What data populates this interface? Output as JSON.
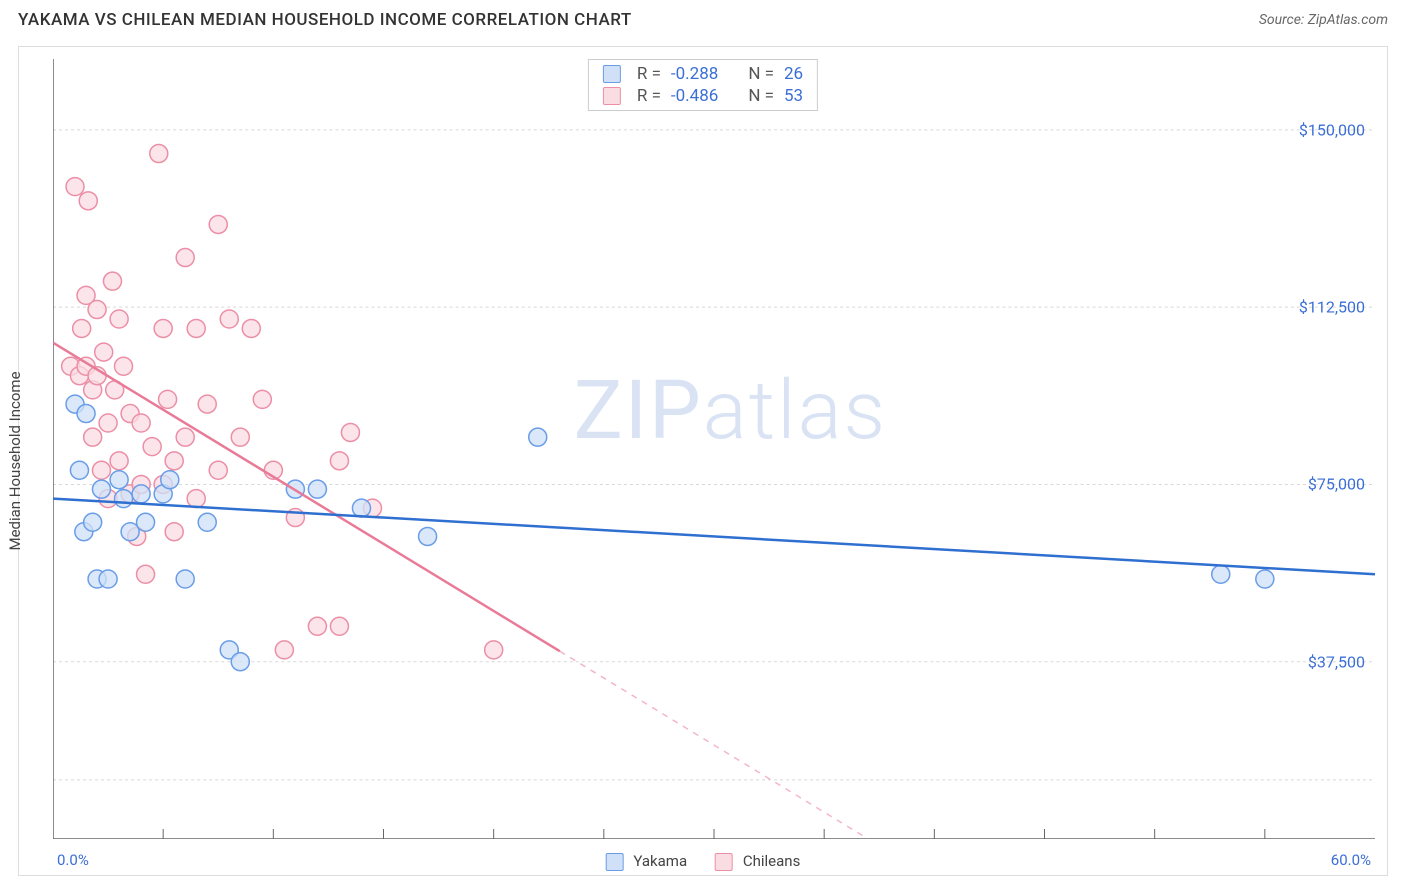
{
  "header": {
    "title": "YAKAMA VS CHILEAN MEDIAN HOUSEHOLD INCOME CORRELATION CHART",
    "source": "Source: ZipAtlas.com"
  },
  "watermark": {
    "left": "ZIP",
    "right": "atlas"
  },
  "chart": {
    "type": "scatter",
    "y_axis_label": "Median Household Income",
    "xlim": [
      0,
      60
    ],
    "ylim": [
      0,
      165000
    ],
    "x_min_label": "0.0%",
    "x_max_label": "60.0%",
    "y_ticks": [
      37500,
      75000,
      112500,
      150000
    ],
    "y_tick_labels": [
      "$37,500",
      "$75,000",
      "$112,500",
      "$150,000"
    ],
    "x_tick_positions": [
      5,
      10,
      15,
      20,
      25,
      30,
      35,
      40,
      45,
      50,
      55
    ],
    "grid_color": "#d8d8d8",
    "grid_dash": "3,3",
    "axis_color": "#666666",
    "background_color": "#ffffff",
    "marker_radius": 9,
    "marker_stroke_width": 1.5,
    "line_width": 2.5,
    "series": {
      "yakama": {
        "label": "Yakama",
        "color_fill": "#cfe0f7",
        "color_stroke": "#6a9de8",
        "line_color": "#2f6fd0",
        "R": "-0.288",
        "N": "26",
        "trend": {
          "x1": 0,
          "y1": 72000,
          "x2": 60,
          "y2": 56000,
          "dashed_after_x": null
        },
        "points": [
          [
            1.0,
            92000
          ],
          [
            1.2,
            78000
          ],
          [
            1.4,
            65000
          ],
          [
            1.5,
            90000
          ],
          [
            1.8,
            67000
          ],
          [
            2.0,
            55000
          ],
          [
            2.2,
            74000
          ],
          [
            2.5,
            55000
          ],
          [
            3.0,
            76000
          ],
          [
            3.2,
            72000
          ],
          [
            3.5,
            65000
          ],
          [
            4.0,
            73000
          ],
          [
            4.2,
            67000
          ],
          [
            5.0,
            73000
          ],
          [
            5.3,
            76000
          ],
          [
            6.0,
            55000
          ],
          [
            7.0,
            67000
          ],
          [
            8.0,
            40000
          ],
          [
            8.5,
            37500
          ],
          [
            11.0,
            74000
          ],
          [
            12.0,
            74000
          ],
          [
            14.0,
            70000
          ],
          [
            17.0,
            64000
          ],
          [
            22.0,
            85000
          ],
          [
            53.0,
            56000
          ],
          [
            55.0,
            55000
          ]
        ]
      },
      "chileans": {
        "label": "Chileans",
        "color_fill": "#fadce3",
        "color_stroke": "#ec8fa6",
        "line_color": "#e97a98",
        "R": "-0.486",
        "N": "53",
        "trend": {
          "x1": 0,
          "y1": 105000,
          "x2": 37,
          "y2": 0,
          "dashed_after_x": 23
        },
        "points": [
          [
            0.8,
            100000
          ],
          [
            1.0,
            138000
          ],
          [
            1.2,
            98000
          ],
          [
            1.3,
            108000
          ],
          [
            1.5,
            115000
          ],
          [
            1.5,
            100000
          ],
          [
            1.6,
            135000
          ],
          [
            1.8,
            95000
          ],
          [
            1.8,
            85000
          ],
          [
            2.0,
            112000
          ],
          [
            2.0,
            98000
          ],
          [
            2.2,
            78000
          ],
          [
            2.3,
            103000
          ],
          [
            2.5,
            88000
          ],
          [
            2.5,
            72000
          ],
          [
            2.8,
            95000
          ],
          [
            3.0,
            110000
          ],
          [
            3.0,
            80000
          ],
          [
            3.2,
            100000
          ],
          [
            3.5,
            90000
          ],
          [
            3.5,
            73000
          ],
          [
            3.8,
            64000
          ],
          [
            4.0,
            88000
          ],
          [
            4.0,
            75000
          ],
          [
            4.2,
            56000
          ],
          [
            4.5,
            83000
          ],
          [
            4.8,
            145000
          ],
          [
            5.0,
            108000
          ],
          [
            5.0,
            75000
          ],
          [
            5.2,
            93000
          ],
          [
            5.5,
            80000
          ],
          [
            5.5,
            65000
          ],
          [
            6.0,
            123000
          ],
          [
            6.0,
            85000
          ],
          [
            6.5,
            108000
          ],
          [
            6.5,
            72000
          ],
          [
            7.0,
            92000
          ],
          [
            7.5,
            130000
          ],
          [
            7.5,
            78000
          ],
          [
            8.0,
            110000
          ],
          [
            8.5,
            85000
          ],
          [
            9.0,
            108000
          ],
          [
            10.0,
            78000
          ],
          [
            10.5,
            40000
          ],
          [
            11.0,
            68000
          ],
          [
            12.0,
            45000
          ],
          [
            13.0,
            80000
          ],
          [
            13.0,
            45000
          ],
          [
            13.5,
            86000
          ],
          [
            14.5,
            70000
          ],
          [
            20.0,
            40000
          ],
          [
            9.5,
            93000
          ],
          [
            2.7,
            118000
          ]
        ]
      }
    }
  },
  "legend": {
    "top": {
      "r_label": "R =",
      "n_label": "N ="
    },
    "bottom": [
      {
        "key": "yakama",
        "label": "Yakama"
      },
      {
        "key": "chileans",
        "label": "Chileans"
      }
    ]
  },
  "colors": {
    "blue_text": "#3b6fd6",
    "gray_text": "#555555"
  }
}
